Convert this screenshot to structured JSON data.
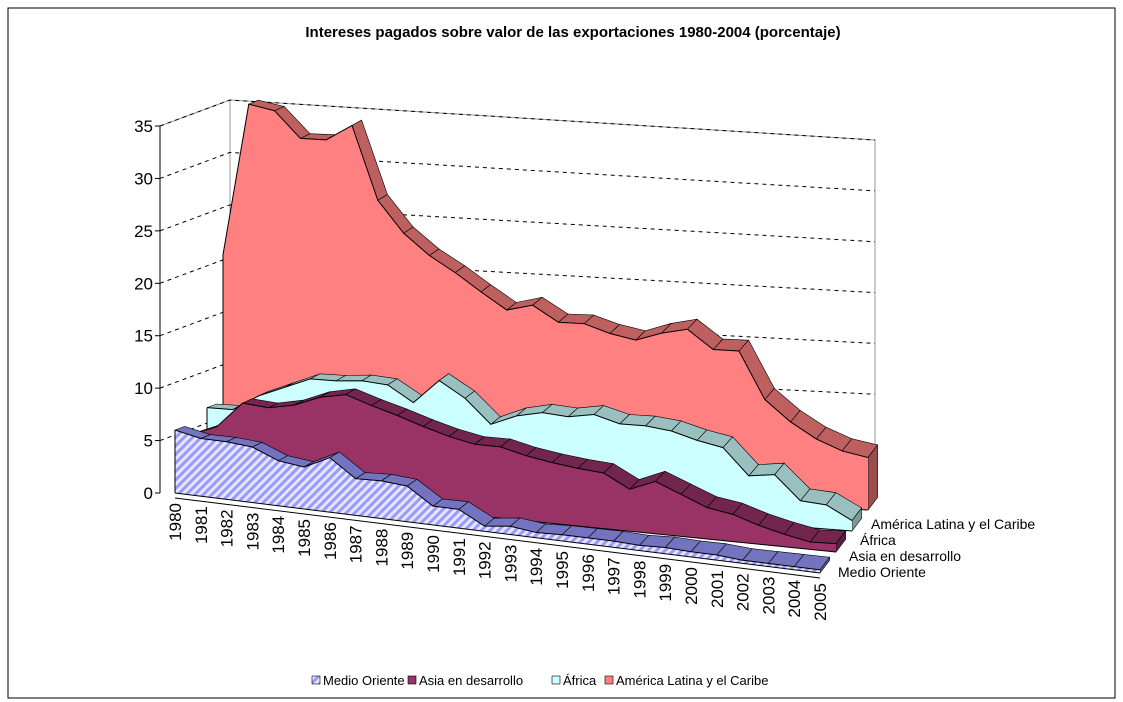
{
  "chart_data": {
    "type": "area3d",
    "title": "Intereses pagados sobre valor de las exportaciones 1980-2004 (porcentaje)",
    "categories": [
      "1980",
      "1981",
      "1982",
      "1983",
      "1984",
      "1985",
      "1986",
      "1987",
      "1988",
      "1989",
      "1990",
      "1991",
      "1992",
      "1993",
      "1994",
      "1995",
      "1996",
      "1997",
      "1998",
      "1999",
      "2000",
      "2001",
      "2002",
      "2003",
      "2004",
      "2005"
    ],
    "series": [
      {
        "name": "Medio Oriente",
        "color": "#9999ff",
        "values": [
          6,
          5.5,
          5.5,
          5.3,
          4.3,
          4,
          5.2,
          3.5,
          3.6,
          3.4,
          1.8,
          1.8,
          0.5,
          0.8,
          0.5,
          0.6,
          0.6,
          0.6,
          0.5,
          0.6,
          0.5,
          0.5,
          0.3,
          0.3,
          0.3,
          0.3
        ]
      },
      {
        "name": "Asia en desarrollo",
        "color": "#993366",
        "values": [
          5,
          6,
          8.5,
          8.3,
          8.8,
          9.8,
          10.3,
          9.5,
          8.8,
          8,
          7.3,
          6.8,
          6.8,
          6.2,
          5.8,
          5.5,
          5.3,
          4,
          5,
          4,
          3,
          2.6,
          1.8,
          1.2,
          0.7,
          0.8
        ]
      },
      {
        "name": "África",
        "color": "#ccffff",
        "values": [
          7,
          7,
          8.5,
          9.5,
          10.5,
          10.5,
          10.7,
          10.5,
          9,
          11.3,
          9.8,
          7.5,
          8.5,
          9,
          8.8,
          9.2,
          8.5,
          8.5,
          8.2,
          7.5,
          7,
          4.5,
          4.8,
          2.5,
          2.3,
          1
        ]
      },
      {
        "name": "América Latina y el Caribe",
        "color": "#ff8080",
        "values": [
          21,
          35.5,
          35,
          32.5,
          32.5,
          34,
          27,
          24,
          22,
          20.5,
          18.8,
          17.2,
          17.8,
          16.3,
          16.3,
          15.5,
          15,
          15.8,
          16.3,
          14.5,
          14.5,
          10,
          8,
          6.5,
          5.5,
          5
        ]
      }
    ],
    "ylim": [
      0,
      35
    ],
    "yticks": [
      0,
      5,
      10,
      15,
      20,
      25,
      30,
      35
    ],
    "grid": true,
    "legend": "bottom"
  }
}
